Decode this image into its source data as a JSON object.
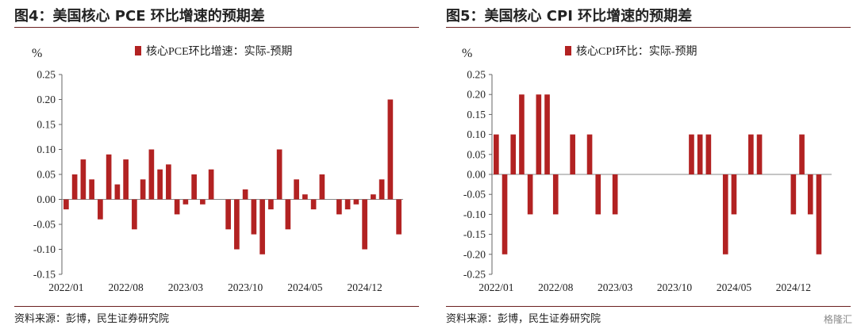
{
  "charts": [
    {
      "title": "图4：美国核心 PCE 环比增速的预期差",
      "source": "资料来源：彭博，民生证券研究院"
    },
    {
      "title": "图5：美国核心 CPI 环比增速的预期差",
      "source": "资料来源：彭博，民生证券研究院"
    }
  ],
  "watermark": "格隆汇",
  "chart_data": [
    {
      "type": "bar",
      "unit": "%",
      "legend": "核心PCE环比增速：实际-预期",
      "color": "#b22222",
      "ylim": [
        -0.15,
        0.25
      ],
      "yticks": [
        "0.25",
        "0.20",
        "0.15",
        "0.10",
        "0.05",
        "0.00",
        "-0.05",
        "-0.10",
        "-0.15"
      ],
      "xticks": [
        "2022/01",
        "2022/08",
        "2023/03",
        "2023/10",
        "2024/05",
        "2024/12"
      ],
      "start": "2022/01",
      "values": [
        -0.02,
        0.05,
        0.08,
        0.04,
        -0.04,
        0.09,
        0.03,
        0.08,
        -0.06,
        0.04,
        0.1,
        0.06,
        0.07,
        -0.03,
        -0.01,
        0.05,
        -0.01,
        0.06,
        0.0,
        -0.06,
        -0.1,
        0.02,
        -0.07,
        -0.11,
        -0.02,
        0.1,
        -0.06,
        0.04,
        0.01,
        -0.02,
        0.05,
        0.0,
        -0.03,
        -0.02,
        -0.01,
        -0.1,
        0.01,
        0.04,
        0.2,
        -0.07
      ]
    },
    {
      "type": "bar",
      "unit": "%",
      "legend": "核心CPI环比：实际-预期",
      "color": "#b22222",
      "ylim": [
        -0.25,
        0.25
      ],
      "yticks": [
        "0.25",
        "0.20",
        "0.15",
        "0.10",
        "0.05",
        "0.00",
        "-0.05",
        "-0.10",
        "-0.15",
        "-0.20",
        "-0.25"
      ],
      "xticks": [
        "2022/01",
        "2022/08",
        "2023/03",
        "2023/10",
        "2024/05",
        "2024/12"
      ],
      "start": "2022/01",
      "values": [
        0.1,
        -0.2,
        0.1,
        0.2,
        -0.1,
        0.2,
        0.2,
        -0.1,
        0.0,
        0.1,
        0.0,
        0.1,
        -0.1,
        0.0,
        -0.1,
        0.0,
        0.0,
        0.0,
        0.0,
        0.0,
        0.0,
        0.0,
        0.0,
        0.1,
        0.1,
        0.1,
        0.0,
        -0.2,
        -0.1,
        0.0,
        0.1,
        0.1,
        0.0,
        0.0,
        0.0,
        -0.1,
        0.1,
        -0.1,
        -0.2,
        0.0
      ]
    }
  ]
}
